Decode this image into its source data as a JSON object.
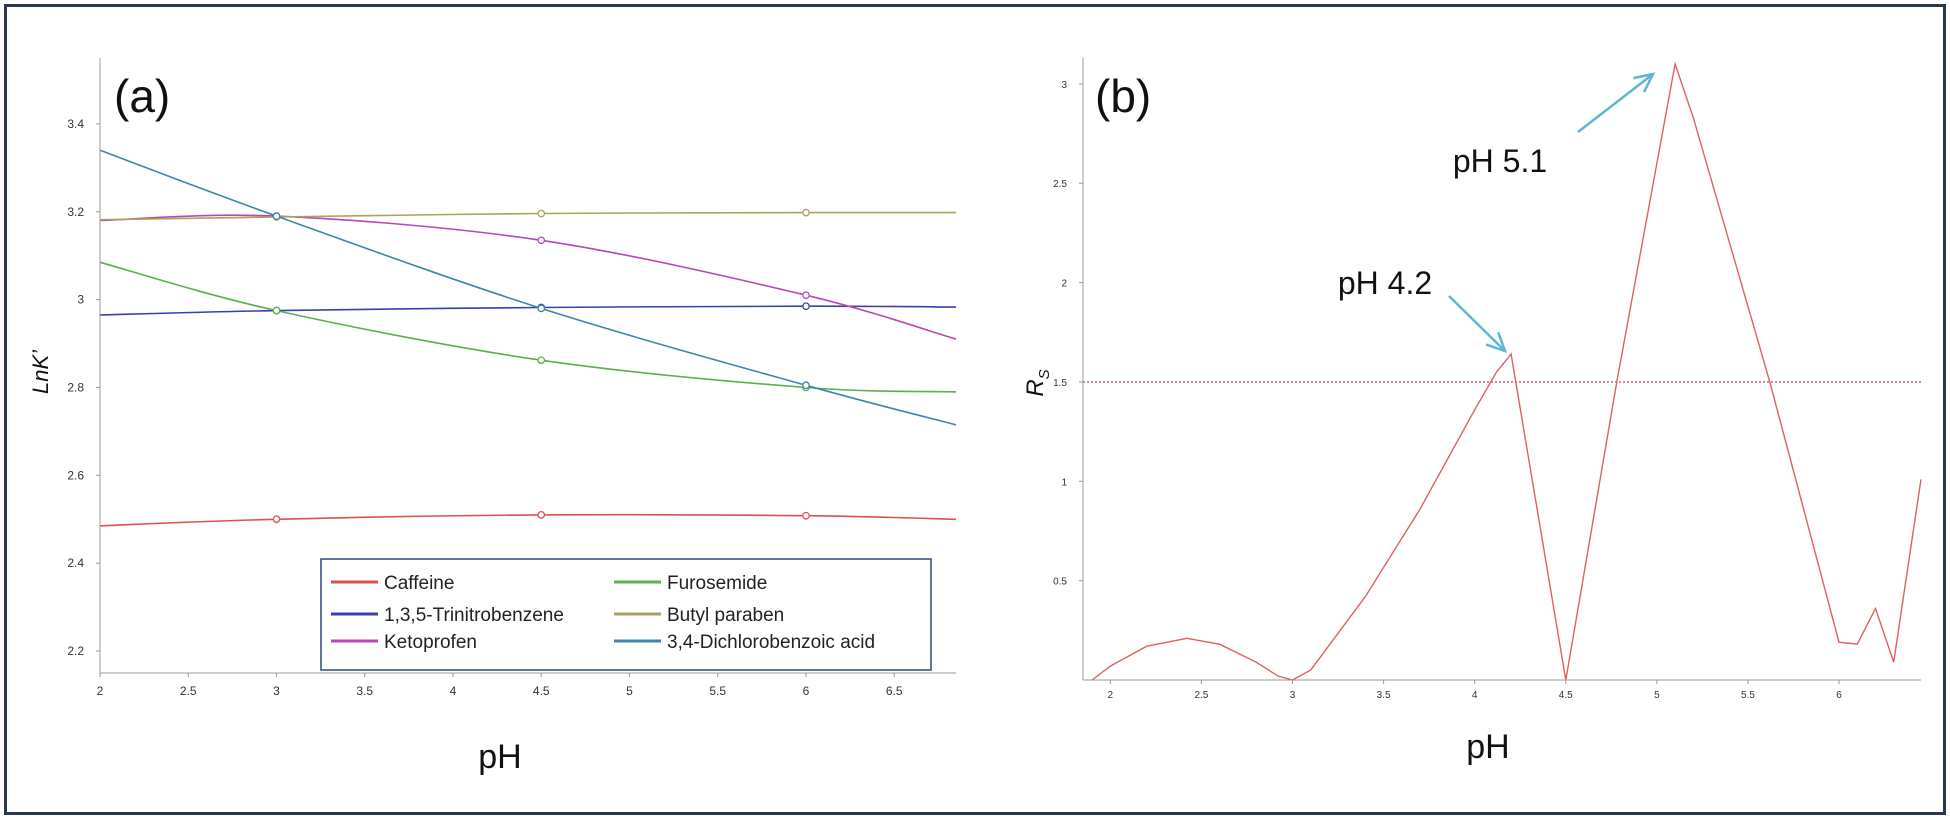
{
  "chart_data": [
    {
      "type": "line",
      "panel_label": "(a)",
      "xlabel": "pH",
      "ylabel": "LnK’",
      "xlim": [
        2,
        6.85
      ],
      "ylim": [
        2.15,
        3.55
      ],
      "x_ticks": [
        "2",
        "2.5",
        "3",
        "3.5",
        "4",
        "4.5",
        "5",
        "5.5",
        "6",
        "6.5"
      ],
      "y_ticks": [
        "2.2",
        "2.4",
        "2.6",
        "2.8",
        "3",
        "3.2",
        "3.4"
      ],
      "legend_position": "bottom-right",
      "series": [
        {
          "name": "Caffeine",
          "color": "#d9534f",
          "x": [
            2,
            3,
            4.5,
            6,
            6.85
          ],
          "y": [
            2.485,
            2.5,
            2.51,
            2.508,
            2.5
          ],
          "markers_x": [
            3,
            4.5,
            6
          ],
          "markers_y": [
            2.5,
            2.51,
            2.508
          ]
        },
        {
          "name": "1,3,5-Trinitrobenzene",
          "color": "#3a3fae",
          "x": [
            2,
            3,
            4.5,
            6,
            6.85
          ],
          "y": [
            2.965,
            2.975,
            2.982,
            2.985,
            2.983
          ],
          "markers_x": [
            3,
            4.5,
            6
          ],
          "markers_y": [
            2.975,
            2.982,
            2.985
          ]
        },
        {
          "name": "Ketoprofen",
          "color": "#b748b8",
          "x": [
            2,
            3,
            4.5,
            6,
            6.85
          ],
          "y": [
            3.18,
            3.19,
            3.135,
            3.01,
            2.91
          ],
          "markers_x": [
            3,
            4.5,
            6
          ],
          "markers_y": [
            3.19,
            3.135,
            3.01
          ]
        },
        {
          "name": "Furosemide",
          "color": "#5cae4e",
          "x": [
            2,
            3,
            4.5,
            6,
            6.85
          ],
          "y": [
            3.085,
            2.975,
            2.862,
            2.8,
            2.79
          ],
          "markers_x": [
            3,
            4.5,
            6
          ],
          "markers_y": [
            2.975,
            2.862,
            2.8
          ]
        },
        {
          "name": "Butyl paraben",
          "color": "#a9a35c",
          "x": [
            2,
            3,
            4.5,
            6,
            6.85
          ],
          "y": [
            3.182,
            3.188,
            3.196,
            3.198,
            3.198
          ],
          "markers_x": [
            3,
            4.5,
            6
          ],
          "markers_y": [
            3.188,
            3.196,
            3.198
          ]
        },
        {
          "name": "3,4-Dichlorobenzoic acid",
          "color": "#3d86a8",
          "x": [
            2,
            3,
            4.5,
            6,
            6.85
          ],
          "y": [
            3.34,
            3.19,
            2.98,
            2.805,
            2.715
          ],
          "markers_x": [
            3,
            4.5,
            6
          ],
          "markers_y": [
            3.19,
            2.98,
            2.805
          ]
        }
      ]
    },
    {
      "type": "line",
      "panel_label": "(b)",
      "xlabel": "pH",
      "ylabel": "R",
      "ylabel_subscript": "S",
      "xlim": [
        1.85,
        6.45
      ],
      "ylim": [
        0,
        3.1
      ],
      "x_ticks": [
        "2",
        "2.5",
        "3",
        "3.5",
        "4",
        "4.5",
        "5",
        "5.5",
        "6"
      ],
      "y_ticks": [
        "0.5",
        "1",
        "1.5",
        "2",
        "2.5",
        "3"
      ],
      "threshold": 1.5,
      "series": [
        {
          "name": "",
          "color": "#e06060",
          "x": [
            1.9,
            2.0,
            2.2,
            2.42,
            2.6,
            2.8,
            2.92,
            3.0,
            3.1,
            3.4,
            3.7,
            4.0,
            4.12,
            4.2,
            4.5,
            4.78,
            5.1,
            5.2,
            5.62,
            6.0,
            6.1,
            6.2,
            6.3,
            6.45
          ],
          "y": [
            0.0,
            0.07,
            0.17,
            0.21,
            0.18,
            0.09,
            0.02,
            0.0,
            0.05,
            0.42,
            0.86,
            1.36,
            1.55,
            1.64,
            0.0,
            1.5,
            3.1,
            2.83,
            1.5,
            0.19,
            0.18,
            0.36,
            0.09,
            1.01
          ]
        }
      ],
      "annotations": [
        {
          "text": "pH 5.1",
          "x": 5.1,
          "y": 3.1
        },
        {
          "text": "pH 4.2",
          "x": 4.2,
          "y": 1.64
        }
      ]
    }
  ]
}
